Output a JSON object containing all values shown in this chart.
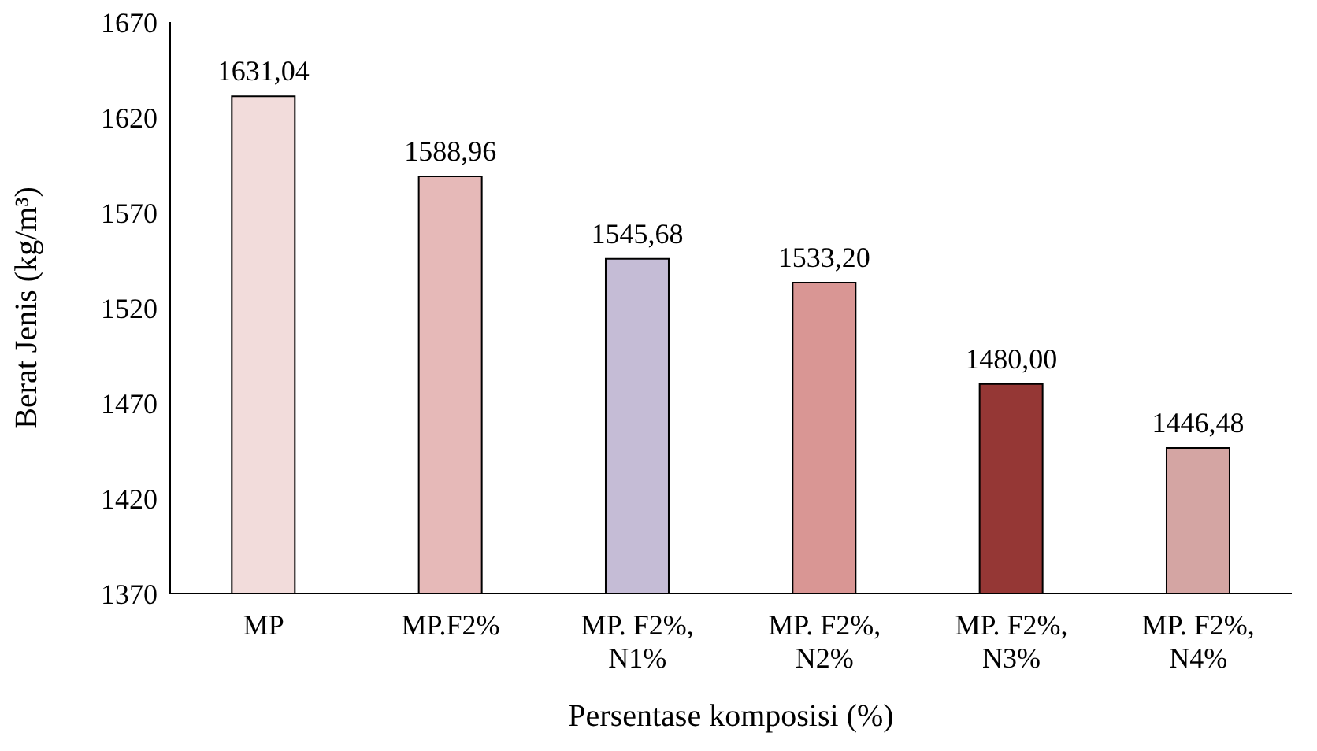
{
  "chart_data": {
    "type": "bar",
    "xlabel": "Persentase komposisi (%)",
    "ylabel": "Berat Jenis (kg/m³)",
    "categories": [
      "MP",
      "MP.F2%",
      "MP. F2%,\nN1%",
      "MP. F2%,\nN2%",
      "MP. F2%,\nN3%",
      "MP. F2%,\nN4%"
    ],
    "values": [
      1631.04,
      1588.96,
      1545.68,
      1533.2,
      1480,
      1446.48
    ],
    "value_labels": [
      "1631,04",
      "1588,96",
      "1545,68",
      "1533,20",
      "1480,00",
      "1446,48"
    ],
    "colors": [
      "#f2dcdb",
      "#e6b9b8",
      "#c5bcd6",
      "#d99694",
      "#953735",
      "#d4a5a3"
    ],
    "ylim": [
      1370,
      1670
    ],
    "yticks": [
      1370,
      1420,
      1470,
      1520,
      1570,
      1620,
      1670
    ],
    "grid": false,
    "legend": false
  }
}
